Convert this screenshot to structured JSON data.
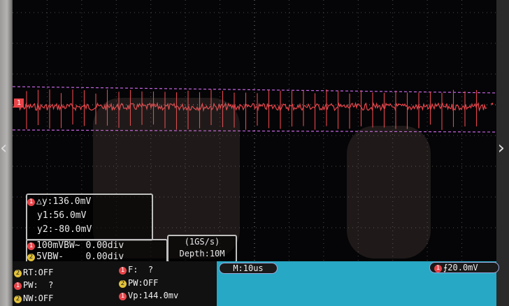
{
  "channel_marker": "1",
  "trigger_marker": "◂",
  "cursor_panel": {
    "delta_y": "△y:136.0mV",
    "y1": "y1:56.0mV",
    "y2": "y2:-80.0mV"
  },
  "channel_rows": [
    {
      "num": "1",
      "text": "100mVBW~ 0.00div"
    },
    {
      "num": "2",
      "text": "5VBW-    0.00div"
    }
  ],
  "acquisition": {
    "rate": "(1GS/s)",
    "depth": "Depth:10M"
  },
  "timebase": "M:10us",
  "trigger": {
    "num": "1",
    "symbol": "⨍",
    "level": "20.0mV"
  },
  "measurements": [
    {
      "num": "2",
      "text": "RT:OFF"
    },
    {
      "num": "1",
      "text": "F:  ?"
    },
    {
      "num": "1",
      "text": "PW:  ?"
    },
    {
      "num": "2",
      "text": "PW:OFF"
    },
    {
      "num": "2",
      "text": "NW:OFF"
    },
    {
      "num": "1",
      "text": "Vp:144.0mv"
    }
  ],
  "colors": {
    "ch1": "#e8454a",
    "ch2": "#e3c23a",
    "status_bar": "#27a8c5",
    "cursor": "#c864e6"
  },
  "icons": {
    "left_nav": "chevron-left-icon",
    "right_nav": "chevron-right-icon"
  }
}
